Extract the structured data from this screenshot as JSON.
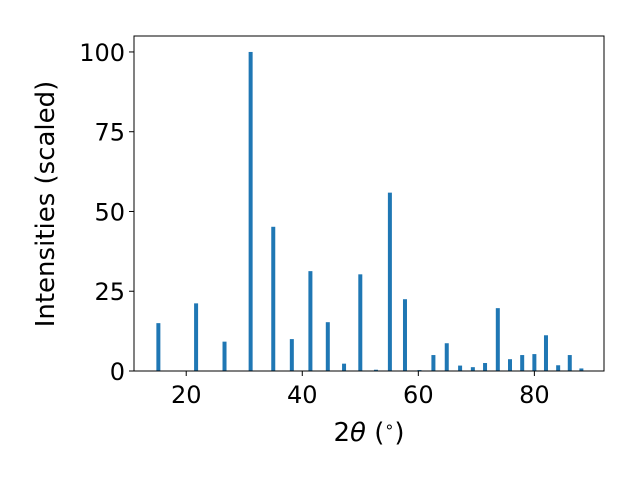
{
  "chart_data": {
    "type": "bar",
    "xlabel": "2θ (°)",
    "xlabel_parts": {
      "prefix": "2",
      "theta": "θ",
      "suffix": " (",
      "degree": "∘",
      "close": ")"
    },
    "ylabel": "Intensities (scaled)",
    "xlim": [
      11,
      92
    ],
    "ylim": [
      0,
      105
    ],
    "xticks": [
      20,
      40,
      60,
      80
    ],
    "yticks": [
      0,
      25,
      50,
      75,
      100
    ],
    "bar_color": "#1f77b4",
    "grid": false,
    "x": [
      15.2,
      21.7,
      26.6,
      31.1,
      35.0,
      38.2,
      41.4,
      44.4,
      47.2,
      50.0,
      52.7,
      55.1,
      57.7,
      60.2,
      62.6,
      64.9,
      67.2,
      69.4,
      71.5,
      73.7,
      75.8,
      77.9,
      80.0,
      82.0,
      84.1,
      86.1,
      88.1
    ],
    "values": [
      15.0,
      21.2,
      9.2,
      100.0,
      45.2,
      10.0,
      31.3,
      15.3,
      2.3,
      30.3,
      0.4,
      55.9,
      22.5,
      0.3,
      5.0,
      8.7,
      1.7,
      1.2,
      2.5,
      19.7,
      3.7,
      5.0,
      5.3,
      11.2,
      1.8,
      5.0,
      0.8
    ]
  }
}
